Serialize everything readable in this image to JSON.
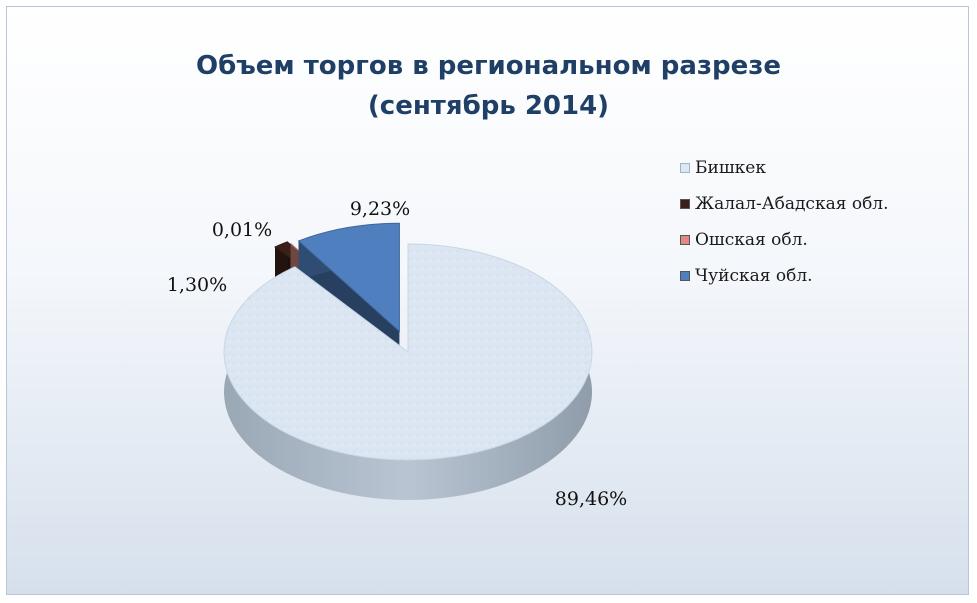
{
  "chart_data": {
    "type": "pie",
    "title_line1": "Объем торгов в региональном разрезе",
    "title_line2": "(сентябрь 2014)",
    "categories": [
      "Бишкек",
      "Жалал-Абадская обл.",
      "Ошская обл.",
      "Чуйская обл."
    ],
    "values": [
      89.46,
      1.3,
      0.01,
      9.23
    ],
    "labels": [
      "89,46%",
      "1,30%",
      "0,01%",
      "9,23%"
    ],
    "colors": [
      "#dde8f3",
      "#3a2018",
      "#e08b80",
      "#4f7fbf"
    ],
    "legend_position": "right",
    "exploded": true,
    "style": "3d"
  }
}
